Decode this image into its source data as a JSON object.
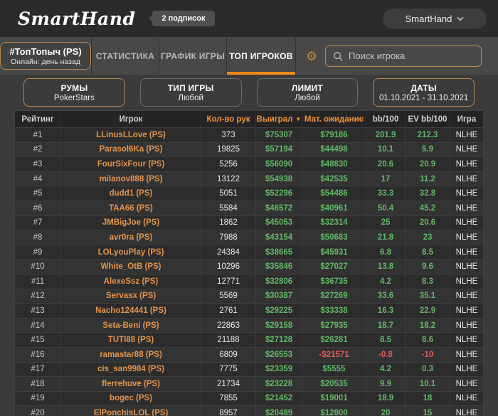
{
  "header": {
    "logo": "SmartHand",
    "subscriptions_badge": "2 подписок",
    "account_button": "SmartHand"
  },
  "nav": {
    "team": {
      "title": "#ТопТопыч (PS)",
      "subtitle": "Онлайн: день назад"
    },
    "tabs": [
      {
        "label": "СТАТИСТИКА",
        "active": false
      },
      {
        "label": "ГРАФИК ИГРЫ",
        "active": false
      },
      {
        "label": "ТОП ИГРОКОВ",
        "active": true
      }
    ],
    "search_placeholder": "Поиск игрока"
  },
  "filters": [
    {
      "title": "РУМЫ",
      "value": "PokerStars",
      "highlighted": true
    },
    {
      "title": "ТИП ИГРЫ",
      "value": "Любой",
      "highlighted": false
    },
    {
      "title": "ЛИМИТ",
      "value": "Любой",
      "highlighted": false
    },
    {
      "title": "ДАТЫ",
      "value": "01.10.2021 - 31.10.2021",
      "highlighted": true
    }
  ],
  "table": {
    "columns": [
      {
        "label": "Рейтинг",
        "accent": false
      },
      {
        "label": "Игрок",
        "accent": false
      },
      {
        "label": "Кол-во рук",
        "accent": true
      },
      {
        "label": "Выиграл",
        "accent": true,
        "sorted": "desc"
      },
      {
        "label": "Мат. ожидание",
        "accent": true
      },
      {
        "label": "bb/100",
        "accent": false
      },
      {
        "label": "EV bb/100",
        "accent": false
      },
      {
        "label": "Игра",
        "accent": false
      }
    ],
    "rows": [
      [
        "#1",
        "LLinusLLove (PS)",
        "373",
        "$75307",
        "$79186",
        "201.9",
        "212.3",
        "NLHE"
      ],
      [
        "#2",
        "Parasol6Ka (PS)",
        "19825",
        "$57194",
        "$44498",
        "10.1",
        "5.9",
        "NLHE"
      ],
      [
        "#3",
        "FourSixFour (PS)",
        "5256",
        "$56090",
        "$48830",
        "20.6",
        "20.9",
        "NLHE"
      ],
      [
        "#4",
        "milanov888 (PS)",
        "13122",
        "$54938",
        "$42535",
        "17",
        "11.2",
        "NLHE"
      ],
      [
        "#5",
        "dudd1 (PS)",
        "5051",
        "$52296",
        "$54486",
        "33.3",
        "32.8",
        "NLHE"
      ],
      [
        "#6",
        "TAA66 (PS)",
        "5584",
        "$46572",
        "$40961",
        "50.4",
        "45.2",
        "NLHE"
      ],
      [
        "#7",
        "JMBigJoe (PS)",
        "1862",
        "$45053",
        "$32314",
        "25",
        "20.6",
        "NLHE"
      ],
      [
        "#8",
        "avr0ra (PS)",
        "7988",
        "$43154",
        "$50683",
        "21.8",
        "23",
        "NLHE"
      ],
      [
        "#9",
        "LOLyouPlay (PS)",
        "24384",
        "$38665",
        "$45931",
        "6.8",
        "8.5",
        "NLHE"
      ],
      [
        "#10",
        "White_OtB (PS)",
        "10296",
        "$35846",
        "$27027",
        "13.8",
        "9.6",
        "NLHE"
      ],
      [
        "#11",
        "AlexeSsz (PS)",
        "12771",
        "$32806",
        "$36735",
        "4.2",
        "8.3",
        "NLHE"
      ],
      [
        "#12",
        "Servasx (PS)",
        "5569",
        "$30387",
        "$27269",
        "33.6",
        "35.1",
        "NLHE"
      ],
      [
        "#13",
        "Nacho124441 (PS)",
        "2761",
        "$29225",
        "$33338",
        "16.3",
        "22.9",
        "NLHE"
      ],
      [
        "#14",
        "Seta-Beni (PS)",
        "22863",
        "$29158",
        "$27935",
        "18.7",
        "18.2",
        "NLHE"
      ],
      [
        "#15",
        "TUTI88 (PS)",
        "21188",
        "$27128",
        "$26281",
        "8.5",
        "8.6",
        "NLHE"
      ],
      [
        "#16",
        "ramastar88 (PS)",
        "6809",
        "$26553",
        "-$21571",
        "-0.8",
        "-10",
        "NLHE"
      ],
      [
        "#17",
        "cis_san9984 (PS)",
        "7775",
        "$23359",
        "$5555",
        "4.2",
        "0.3",
        "NLHE"
      ],
      [
        "#18",
        "flerrehuve (PS)",
        "21734",
        "$23228",
        "$20535",
        "9.9",
        "10.1",
        "NLHE"
      ],
      [
        "#19",
        "bogec (PS)",
        "7855",
        "$21452",
        "$19001",
        "18.9",
        "18",
        "NLHE"
      ],
      [
        "#20",
        "ElPonchisLOL (PS)",
        "8957",
        "$20489",
        "$12800",
        "20",
        "15",
        "NLHE"
      ]
    ]
  },
  "colors": {
    "accent": "#ef8a1c",
    "accent_border": "#b9854d",
    "accent_text": "#ef9435",
    "player_link": "#e2944d",
    "positive": "#63b768",
    "negative": "#e05c5c"
  }
}
